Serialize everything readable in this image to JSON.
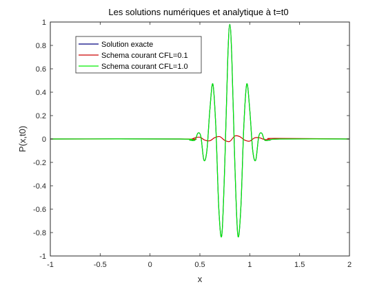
{
  "chart_data": {
    "type": "line",
    "title": "Les solutions numériques et analytique à t=t0",
    "xlabel": "x",
    "ylabel": "P(x,t0)",
    "xlim": [
      -1,
      2
    ],
    "ylim": [
      -1,
      1
    ],
    "xticks": [
      -1,
      -0.5,
      0,
      0.5,
      1,
      1.5,
      2
    ],
    "xtick_labels": [
      "-1",
      "-0.5",
      "0",
      "0.5",
      "1",
      "1.5",
      "2"
    ],
    "yticks": [
      -1,
      -0.8,
      -0.6,
      -0.4,
      -0.2,
      0,
      0.2,
      0.4,
      0.6,
      0.8,
      1
    ],
    "ytick_labels": [
      "-1",
      "-0.8",
      "-0.6",
      "-0.4",
      "-0.2",
      "0",
      "0.2",
      "0.4",
      "0.6",
      "0.8",
      "1"
    ],
    "grid": false,
    "legend_position": "top-left",
    "series": [
      {
        "name": "Solution exacte",
        "color": "#00007f",
        "x": [
          -1,
          0.3,
          0.4,
          0.45,
          0.48,
          0.51,
          0.54,
          0.57,
          0.6,
          0.63,
          0.66,
          0.69,
          0.72,
          0.75,
          0.78,
          0.8,
          0.82,
          0.85,
          0.88,
          0.91,
          0.94,
          0.97,
          1.0,
          1.03,
          1.06,
          1.09,
          1.12,
          1.15,
          1.2,
          1.3,
          2
        ],
        "y": [
          0,
          0,
          -0.01,
          -0.01,
          0.05,
          0.02,
          -0.18,
          -0.1,
          0.25,
          0.47,
          0.1,
          -0.6,
          -0.82,
          -0.2,
          0.7,
          0.98,
          0.7,
          -0.2,
          -0.82,
          -0.6,
          0.1,
          0.47,
          0.25,
          -0.1,
          -0.18,
          0.02,
          0.05,
          -0.01,
          -0.01,
          0,
          0
        ]
      },
      {
        "name": "Schema courant CFL=0.1",
        "color": "#cc0000",
        "x": [
          -1,
          0.35,
          0.4,
          0.45,
          0.5,
          0.55,
          0.6,
          0.65,
          0.7,
          0.75,
          0.8,
          0.85,
          0.9,
          0.95,
          1.0,
          1.05,
          1.1,
          1.15,
          1.2,
          1.25,
          2
        ],
        "y": [
          0,
          0,
          -0.005,
          0.01,
          0.015,
          -0.01,
          -0.015,
          0.012,
          0.02,
          -0.012,
          -0.02,
          0.025,
          0.02,
          -0.01,
          -0.018,
          0.01,
          0.01,
          -0.005,
          0,
          0.005,
          0
        ]
      },
      {
        "name": "Schema courant CFL=1.0",
        "color": "#00ee00",
        "x": [
          -1,
          0.3,
          0.4,
          0.45,
          0.48,
          0.51,
          0.54,
          0.57,
          0.6,
          0.63,
          0.66,
          0.69,
          0.72,
          0.75,
          0.78,
          0.8,
          0.82,
          0.85,
          0.88,
          0.91,
          0.94,
          0.97,
          1.0,
          1.03,
          1.06,
          1.09,
          1.12,
          1.15,
          1.2,
          1.3,
          2
        ],
        "y": [
          0,
          0,
          -0.01,
          -0.01,
          0.05,
          0.02,
          -0.18,
          -0.1,
          0.25,
          0.47,
          0.1,
          -0.6,
          -0.82,
          -0.2,
          0.7,
          0.98,
          0.7,
          -0.2,
          -0.82,
          -0.6,
          0.1,
          0.47,
          0.25,
          -0.1,
          -0.18,
          0.02,
          0.05,
          -0.01,
          -0.01,
          0,
          0
        ]
      }
    ]
  }
}
